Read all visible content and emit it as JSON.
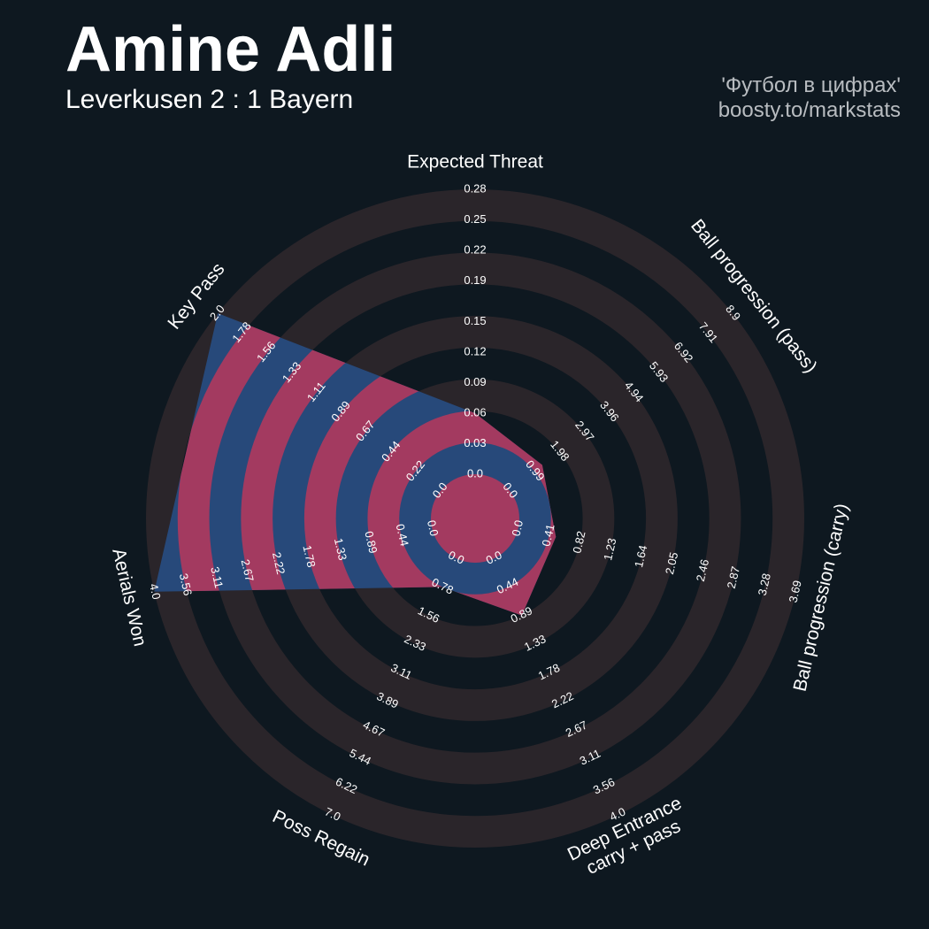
{
  "chart_data": {
    "type": "radar",
    "title": "Amine Adli",
    "subtitle": "Leverkusen 2 : 1 Bayern",
    "credits": [
      "'Футбол в цифрах'",
      "boosty.to/markstats"
    ],
    "colors": {
      "background": "#0e1820",
      "rings": "#2a252a",
      "radar": "#27497a",
      "radar_rings": "#a33a60"
    },
    "axes": [
      {
        "label": "Expected Threat",
        "rlim": [
          0,
          0.28
        ],
        "value": 0.06,
        "ticks": [
          {
            "value": 0,
            "label": "0.0"
          },
          0.03,
          0.06,
          0.09,
          0.12,
          0.15,
          0.19,
          0.22,
          0.25,
          0.28
        ]
      },
      {
        "label": "Ball progression (pass)",
        "rlim": [
          0,
          8.9
        ],
        "value": 1.3,
        "ticks": [
          {
            "value": 0,
            "label": "0.0"
          },
          0.99,
          1.98,
          2.97,
          3.96,
          4.94,
          5.93,
          6.92,
          7.91,
          8.9
        ]
      },
      {
        "label": "Ball progression (carry)",
        "rlim": [
          0,
          3.69
        ],
        "value": 0.5,
        "ticks": [
          {
            "value": 0,
            "label": "0.0"
          },
          0.41,
          0.82,
          1.23,
          1.64,
          2.05,
          2.46,
          2.87,
          3.28,
          3.69
        ]
      },
      {
        "label": [
          "Deep Entrance",
          "carry + pass"
        ],
        "rlim": [
          0,
          4
        ],
        "value": 0.89,
        "ticks": [
          {
            "value": 0,
            "label": "0.0"
          },
          0.44,
          0.89,
          1.33,
          1.78,
          2.22,
          2.67,
          3.11,
          3.56,
          {
            "value": 4,
            "label": "4.0"
          }
        ]
      },
      {
        "label": "Poss Regain",
        "rlim": [
          0,
          7
        ],
        "value": 0.78,
        "ticks": [
          {
            "value": 0,
            "label": "0.0"
          },
          0.78,
          1.56,
          2.33,
          3.11,
          3.89,
          4.67,
          5.44,
          6.22,
          {
            "value": 7,
            "label": "7.0"
          }
        ]
      },
      {
        "label": "Aerials Won",
        "rlim": [
          0,
          4
        ],
        "value": 4,
        "ticks": [
          {
            "value": 0,
            "label": "0.0"
          },
          0.44,
          0.89,
          1.33,
          1.78,
          2.22,
          2.67,
          3.11,
          3.56,
          {
            "value": 4,
            "label": "4.0"
          }
        ]
      },
      {
        "label": "Key Pass",
        "rlim": [
          0,
          2
        ],
        "value": 2,
        "ticks": [
          {
            "value": 0,
            "label": "0.0"
          },
          0.22,
          0.44,
          0.67,
          0.89,
          1.11,
          1.33,
          1.56,
          1.78,
          {
            "value": 2,
            "label": "2.0"
          }
        ]
      }
    ]
  }
}
